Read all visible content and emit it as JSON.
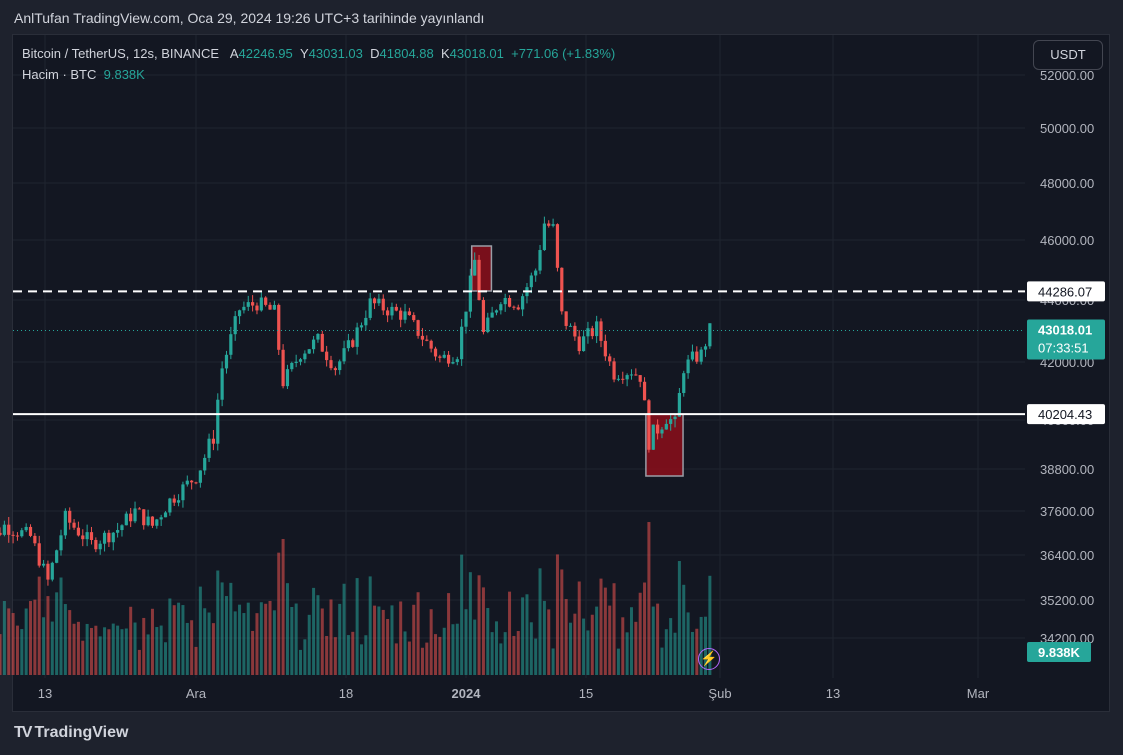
{
  "header": {
    "published": "AnlTufan TradingView.com, Oca 29, 2024 19:26 UTC+3 tarihinde yayınlandı"
  },
  "legend": {
    "symbol": "Bitcoin / TetherUS, 12s, BINANCE",
    "open_label": "A",
    "open": "42246.95",
    "high_label": "Y",
    "high": "43031.03",
    "low_label": "D",
    "low": "41804.88",
    "close_label": "K",
    "close": "43018.01",
    "change": "+771.06 (+1.83%)",
    "volume_label": "Hacim · BTC",
    "volume": "9.838K"
  },
  "currency_button": "USDT",
  "brand": {
    "icon": "TV",
    "name": "TradingView"
  },
  "colors": {
    "up": "#26a69a",
    "down": "#ef5350",
    "background": "#131722",
    "zone": "#8b0e1a"
  },
  "chart_data": {
    "type": "candlestick",
    "y_ticks": [
      "52000.00",
      "50000.00",
      "48000.00",
      "46000.00",
      "44000.00",
      "42000.00",
      "40000.00",
      "38800.00",
      "37600.00",
      "36400.00",
      "35200.00",
      "34200.00"
    ],
    "x_ticks": [
      "13",
      "Ara",
      "18",
      "2024",
      "15",
      "Şub",
      "13",
      "Mar"
    ],
    "date_range": [
      "2023-11-06",
      "2024-01-29"
    ],
    "price_lines": [
      {
        "label": "44286.07",
        "value": 44286.07,
        "style": "dashed"
      },
      {
        "label": "40204.43",
        "value": 40204.43,
        "style": "solid"
      }
    ],
    "last_price": {
      "label": "43018.01",
      "value": 43018.01,
      "countdown": "07:33:51"
    },
    "volume_last": {
      "label": "9.838K"
    },
    "zones": [
      {
        "from": "2024-01-02",
        "to": "2024-01-03",
        "low": 44300,
        "high": 45800
      },
      {
        "from": "2024-01-22",
        "to": "2024-01-25",
        "low": 38600,
        "high": 40200
      }
    ],
    "series": [
      {
        "date": "2023-11-06",
        "close": 36400
      },
      {
        "date": "2023-11-09",
        "close": 37200
      },
      {
        "date": "2023-11-12",
        "close": 36900
      },
      {
        "date": "2023-11-14",
        "close": 35700
      },
      {
        "date": "2023-11-16",
        "close": 37400
      },
      {
        "date": "2023-11-19",
        "close": 36700
      },
      {
        "date": "2023-11-22",
        "close": 37100
      },
      {
        "date": "2023-11-24",
        "close": 37600
      },
      {
        "date": "2023-11-26",
        "close": 37200
      },
      {
        "date": "2023-11-28",
        "close": 37900
      },
      {
        "date": "2023-12-01",
        "close": 38600
      },
      {
        "date": "2023-12-03",
        "close": 39600
      },
      {
        "date": "2023-12-04",
        "close": 41800
      },
      {
        "date": "2023-12-06",
        "close": 43700
      },
      {
        "date": "2023-12-08",
        "close": 43900
      },
      {
        "date": "2023-12-10",
        "close": 43600
      },
      {
        "date": "2023-12-11",
        "close": 41300
      },
      {
        "date": "2023-12-13",
        "close": 42300
      },
      {
        "date": "2023-12-15",
        "close": 42700
      },
      {
        "date": "2023-12-17",
        "close": 41800
      },
      {
        "date": "2023-12-19",
        "close": 42700
      },
      {
        "date": "2023-12-21",
        "close": 43900
      },
      {
        "date": "2023-12-23",
        "close": 43700
      },
      {
        "date": "2023-12-25",
        "close": 43500
      },
      {
        "date": "2023-12-27",
        "close": 42800
      },
      {
        "date": "2023-12-29",
        "close": 42100
      },
      {
        "date": "2023-12-31",
        "close": 42300
      },
      {
        "date": "2024-01-02",
        "close": 45300
      },
      {
        "date": "2024-01-03",
        "close": 42900
      },
      {
        "date": "2024-01-05",
        "close": 44100
      },
      {
        "date": "2024-01-07",
        "close": 43900
      },
      {
        "date": "2024-01-09",
        "close": 45000
      },
      {
        "date": "2024-01-10",
        "close": 46600
      },
      {
        "date": "2024-01-11",
        "close": 46400
      },
      {
        "date": "2024-01-12",
        "close": 43500
      },
      {
        "date": "2024-01-14",
        "close": 42600
      },
      {
        "date": "2024-01-16",
        "close": 43100
      },
      {
        "date": "2024-01-18",
        "close": 41600
      },
      {
        "date": "2024-01-20",
        "close": 41700
      },
      {
        "date": "2024-01-21",
        "close": 41500
      },
      {
        "date": "2024-01-22",
        "close": 39500
      },
      {
        "date": "2024-01-23",
        "close": 39800
      },
      {
        "date": "2024-01-24",
        "close": 40100
      },
      {
        "date": "2024-01-25",
        "close": 39900
      },
      {
        "date": "2024-01-26",
        "close": 41800
      },
      {
        "date": "2024-01-27",
        "close": 42100
      },
      {
        "date": "2024-01-28",
        "close": 42250
      },
      {
        "date": "2024-01-29",
        "close": 43018.01
      }
    ]
  }
}
